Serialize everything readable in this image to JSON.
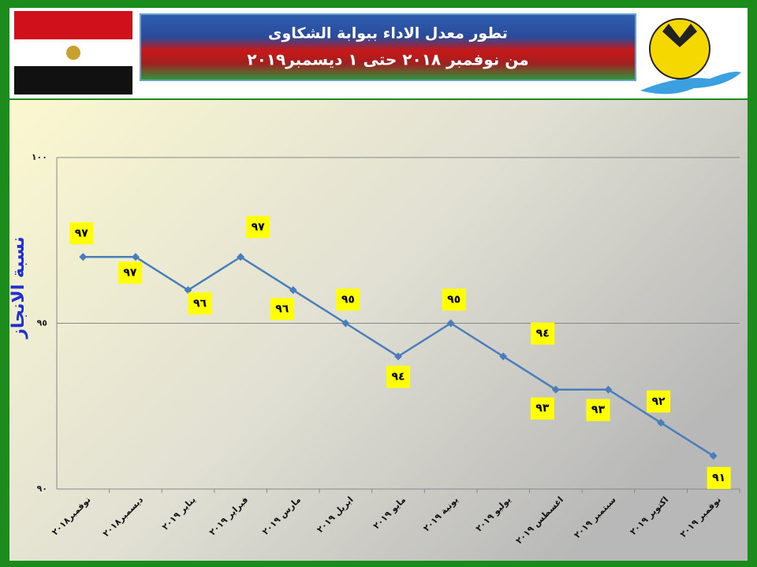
{
  "chart_data": {
    "type": "line",
    "title": "تطور معدل الاداء  ببوابة الشكاوى",
    "subtitle": "من نوفمبر ٢٠١٨  حتى  ١ ديسمبر٢٠١٩",
    "y_label": "نسبة الانجاز",
    "categories": [
      "نوفمبر٢٠١٨",
      "ديسمبر٢٠١٨",
      "يناير ٢٠١٩",
      "فبراير ٢٠١٩",
      "مارس ٢٠١٩",
      "ابريل ٢٠١٩",
      "مايو ٢٠١٩",
      "يونية ٢٠١٩",
      "يوليو ٢٠١٩",
      "اغسطس ٢٠١٩",
      "سبتمبر ٢٠١٩",
      "اكتوبر ٢٠١٩",
      "نوفمبر ٢٠١٩"
    ],
    "values": [
      97,
      97,
      96,
      97,
      96,
      95,
      94,
      95,
      94,
      93,
      93,
      92,
      91
    ],
    "value_labels": [
      "٩٧",
      "٩٧",
      "٩٦",
      "٩٧",
      "٩٦",
      "٩٥",
      "٩٤",
      "٩٥",
      "٩٤",
      "٩٣",
      "٩٣",
      "٩٢",
      "٩١"
    ],
    "color": "#4a7ebb",
    "ylim": [
      90,
      100
    ],
    "yticks": [
      {
        "value": 90,
        "label": "٩٠"
      },
      {
        "value": 95,
        "label": "٩٥"
      },
      {
        "value": 100,
        "label": "١٠٠"
      }
    ],
    "grid": true
  }
}
